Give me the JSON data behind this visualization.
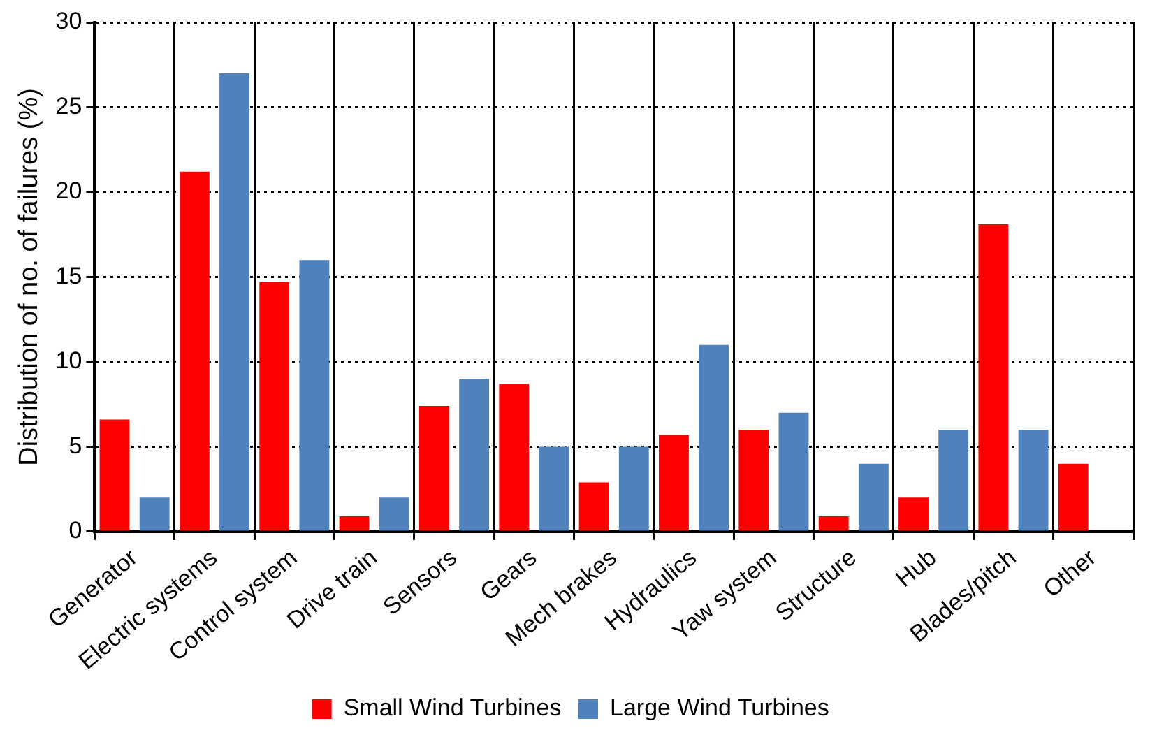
{
  "chart_data": {
    "type": "bar",
    "ylabel": "Distribution of no. of failures (%)",
    "categories": [
      "Generator",
      "Electric systems",
      "Control system",
      "Drive train",
      "Sensors",
      "Gears",
      "Mech brakes",
      "Hydraulics",
      "Yaw system",
      "Structure",
      "Hub",
      "Blades/pitch",
      "Other"
    ],
    "series": [
      {
        "name": "Small Wind Turbines",
        "color": "#ff0000",
        "values": [
          6.6,
          21.2,
          14.7,
          0.9,
          7.4,
          8.7,
          2.9,
          5.7,
          6.0,
          0.9,
          2,
          18.1,
          4.0
        ]
      },
      {
        "name": "Large Wind Turbines",
        "color": "#4f81bd",
        "values": [
          2,
          27,
          16,
          2,
          9,
          5,
          5,
          11,
          7,
          4,
          6,
          6,
          null
        ]
      }
    ],
    "ylim": [
      0,
      30
    ],
    "yticks": [
      0,
      5,
      10,
      15,
      20,
      25,
      30
    ],
    "grid": true,
    "legend": "bottom"
  }
}
